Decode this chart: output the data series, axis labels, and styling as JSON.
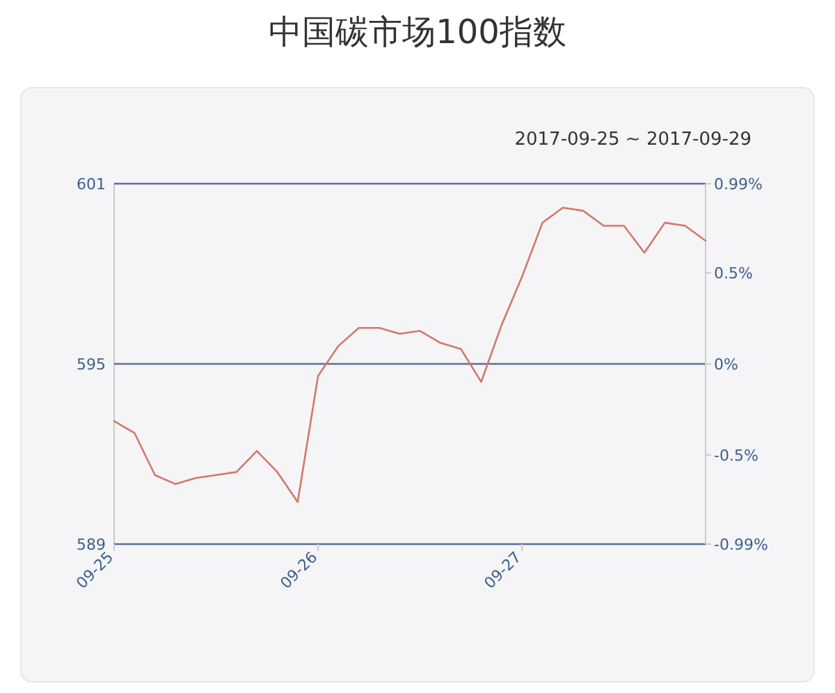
{
  "chart_data": {
    "type": "line",
    "title": "中国碳市场100指数",
    "subtitle": "2017-09-25 ~ 2017-09-29",
    "categories": [
      "09-25",
      null,
      null,
      null,
      null,
      null,
      null,
      null,
      null,
      null,
      "09-26",
      null,
      null,
      null,
      null,
      null,
      null,
      null,
      null,
      null,
      "09-27",
      null,
      null,
      null,
      null,
      null,
      null,
      null,
      null,
      null
    ],
    "series": [
      {
        "color": "#d4776c",
        "values": [
          593.1,
          592.7,
          591.3,
          591.0,
          591.2,
          591.3,
          591.4,
          592.1,
          591.4,
          590.4,
          594.6,
          595.6,
          596.2,
          596.2,
          596.0,
          596.1,
          595.7,
          595.5,
          594.4,
          596.3,
          597.9,
          599.7,
          600.2,
          600.1,
          599.6,
          599.6,
          598.7,
          599.7,
          599.6,
          599.1
        ]
      }
    ],
    "ylim": [
      589,
      601
    ],
    "yticks": [
      589,
      595,
      601
    ],
    "y2lim": [
      -0.99,
      0.99
    ],
    "y2ticks": [
      {
        "value": -0.99,
        "label": "-0.99%"
      },
      {
        "value": -0.5,
        "label": "-0.5%"
      },
      {
        "value": 0,
        "label": "0%"
      },
      {
        "value": 0.5,
        "label": "0.5%"
      },
      {
        "value": 0.99,
        "label": "0.99%"
      }
    ],
    "ref_lines": [
      {
        "axis": "y2",
        "value": 0,
        "color": "#5a6d9c"
      }
    ]
  }
}
